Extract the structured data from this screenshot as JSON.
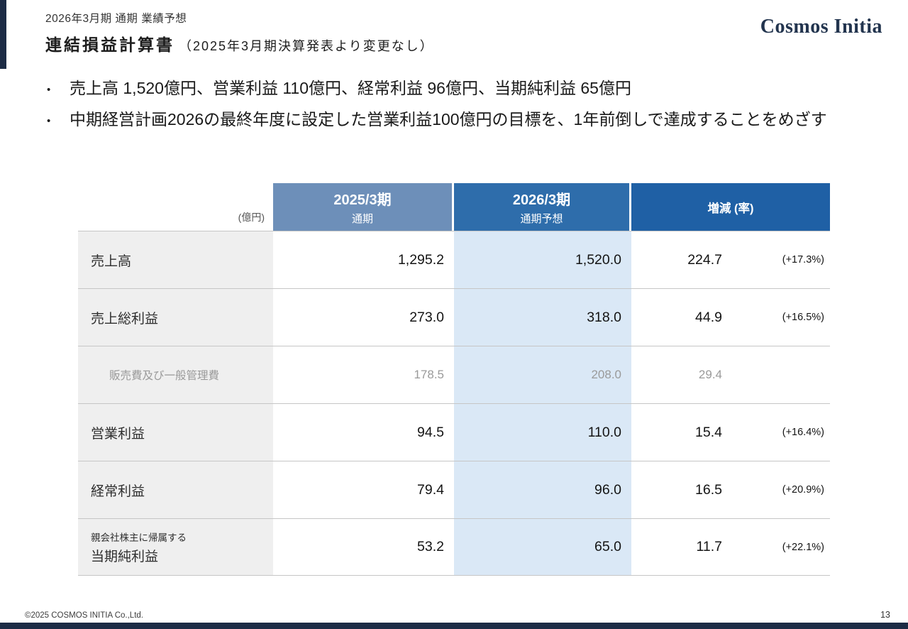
{
  "header": {
    "eyebrow": "2026年3月期 通期 業績予想",
    "title": "連結損益計算書",
    "title_suffix": "（2025年3月期決算発表より変更なし）",
    "logo": "Cosmos Initia"
  },
  "bullets": [
    "売上高 1,520億円、営業利益 110億円、経常利益 96億円、当期純利益 65億円",
    "中期経営計画2026の最終年度に設定した営業利益100億円の目標を、1年前倒しで達成することをめざす"
  ],
  "table": {
    "unit_label": "(億円)",
    "columns": [
      {
        "title": "2025/3期",
        "subtitle": "通期"
      },
      {
        "title": "2026/3期",
        "subtitle": "通期予想"
      },
      {
        "title": "増減 (率)",
        "subtitle": ""
      }
    ],
    "rows": [
      {
        "label": "売上高",
        "fy2025": "1,295.2",
        "fy2026": "1,520.0",
        "change": "224.7",
        "rate": "(+17.3%)"
      },
      {
        "label": "売上総利益",
        "fy2025": "273.0",
        "fy2026": "318.0",
        "change": "44.9",
        "rate": "(+16.5%)"
      },
      {
        "label": "販売費及び一般管理費",
        "fy2025": "178.5",
        "fy2026": "208.0",
        "change": "29.4",
        "rate": ""
      },
      {
        "label": "営業利益",
        "fy2025": "94.5",
        "fy2026": "110.0",
        "change": "15.4",
        "rate": "(+16.4%)"
      },
      {
        "label": "経常利益",
        "fy2025": "79.4",
        "fy2026": "96.0",
        "change": "16.5",
        "rate": "(+20.9%)"
      },
      {
        "label_note": "親会社株主に帰属する",
        "label": "当期純利益",
        "fy2025": "53.2",
        "fy2026": "65.0",
        "change": "11.7",
        "rate": "(+22.1%)"
      }
    ],
    "colors": {
      "header_fy2025": "#6d8fb9",
      "header_fy2026": "#2e6dab",
      "header_change": "#1f60a5",
      "fy2026_column_bg": "#dae8f6",
      "label_column_bg": "#efefef",
      "accent_navy": "#1c2b45"
    }
  },
  "footer": {
    "copyright": "©2025 COSMOS INITIA Co.,Ltd.",
    "page_number": "13"
  }
}
